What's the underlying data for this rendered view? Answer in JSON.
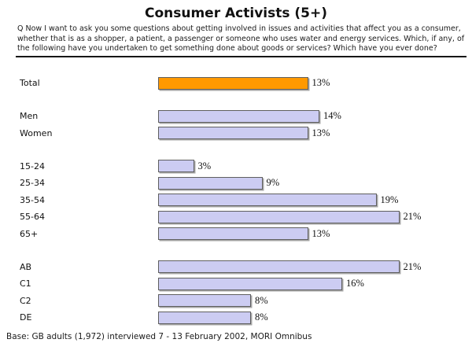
{
  "title": "Consumer Activists (5+)",
  "question": "Q Now I want to ask you some questions about getting involved in issues and activities that affect you as a consumer, whether that is as a shopper, a patient, a passenger or someone who uses water and energy services. Which, if any, of the following have you undertaken to get something done about goods or services? Which have you ever done?",
  "base_note": "Base: GB adults (1,972) interviewed 7 - 13 February 2002, MORI Omnibus",
  "colors": {
    "highlight_bar": "#FF9900",
    "default_bar": "#CCCCF2",
    "bar_border": "#5F5F5F",
    "divider": "#161616"
  },
  "chart_data": {
    "type": "bar",
    "orientation": "horizontal",
    "unit": "%",
    "value_axis_range": [
      0,
      25
    ],
    "grid": false,
    "legend": false,
    "title": "Consumer Activists (5+)",
    "groups": [
      {
        "name": "total",
        "rows": [
          {
            "label": "Total",
            "value": 13,
            "display_value": "13%",
            "highlight": true
          }
        ]
      },
      {
        "name": "gender",
        "rows": [
          {
            "label": "Men",
            "value": 14,
            "display_value": "14%",
            "highlight": false
          },
          {
            "label": "Women",
            "value": 13,
            "display_value": "13%",
            "highlight": false
          }
        ]
      },
      {
        "name": "age",
        "rows": [
          {
            "label": "15-24",
            "value": 3,
            "display_value": "3%",
            "highlight": false
          },
          {
            "label": "25-34",
            "value": 9,
            "display_value": "9%",
            "highlight": false
          },
          {
            "label": "35-54",
            "value": 19,
            "display_value": "19%",
            "highlight": false
          },
          {
            "label": "55-64",
            "value": 21,
            "display_value": "21%",
            "highlight": false
          },
          {
            "label": "65+",
            "value": 13,
            "display_value": "13%",
            "highlight": false
          }
        ]
      },
      {
        "name": "social-grade",
        "rows": [
          {
            "label": "AB",
            "value": 21,
            "display_value": "21%",
            "highlight": false
          },
          {
            "label": "C1",
            "value": 16,
            "display_value": "16%",
            "highlight": false
          },
          {
            "label": "C2",
            "value": 8,
            "display_value": "8%",
            "highlight": false
          },
          {
            "label": "DE",
            "value": 8,
            "display_value": "8%",
            "highlight": false
          }
        ]
      }
    ]
  }
}
